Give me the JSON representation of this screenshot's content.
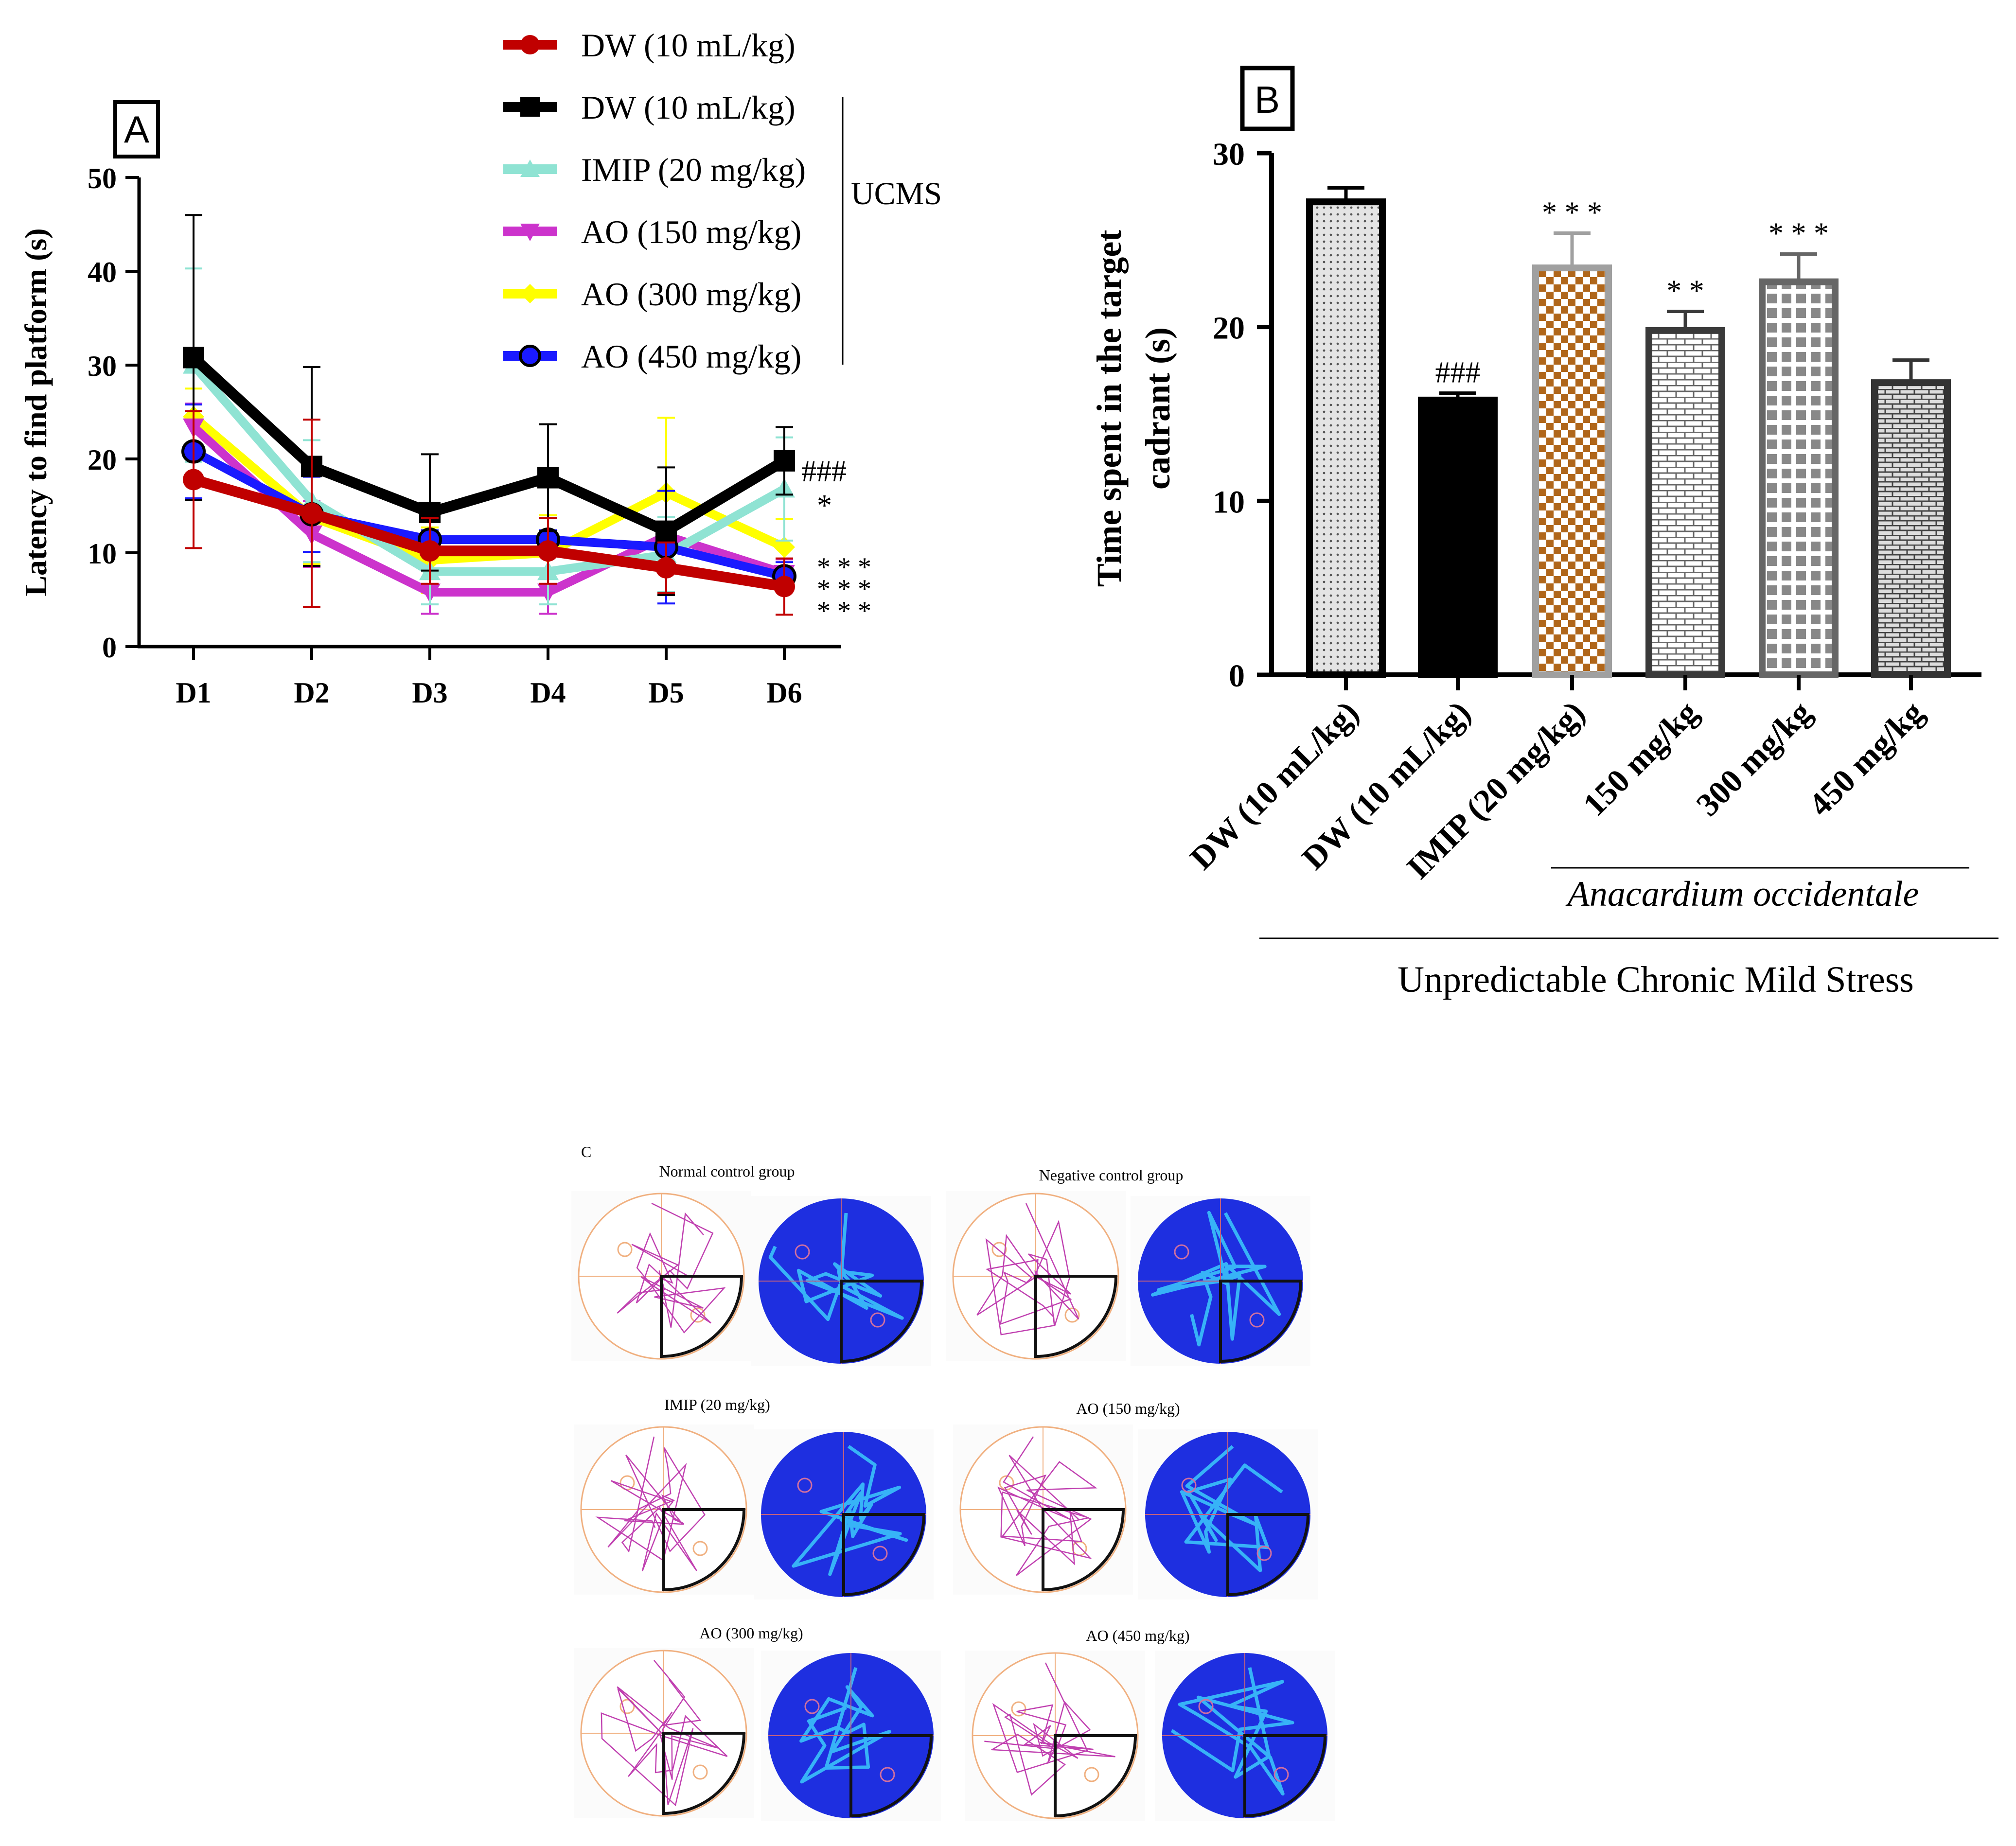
{
  "chart_data": [
    {
      "panel": "A",
      "type": "line",
      "ylabel": "Latency to find platform (s)",
      "xlabel": "",
      "categories": [
        "D1",
        "D2",
        "D3",
        "D4",
        "D5",
        "D6"
      ],
      "yticks": [
        "0",
        "10",
        "20",
        "30",
        "40",
        "50"
      ],
      "ylim": [
        0,
        50
      ],
      "series": [
        {
          "name": "DW (10 mL/kg)",
          "color": "#c00000",
          "marker": "circle",
          "values": [
            17.8,
            14.2,
            10.2,
            10.2,
            8.4,
            6.4
          ],
          "errors": [
            7.3,
            10.0,
            3.5,
            3.5,
            2.7,
            3.0
          ]
        },
        {
          "name": "DW (10 mL/kg)",
          "color": "#000000",
          "marker": "square",
          "values": [
            30.8,
            19.2,
            14.3,
            18.0,
            12.3,
            19.8
          ],
          "errors": [
            15.2,
            10.6,
            6.2,
            5.7,
            6.8,
            3.6
          ]
        },
        {
          "name": "IMIP (20 mg/kg)",
          "color": "#8fe3d3",
          "marker": "triangle",
          "values": [
            30.0,
            15.5,
            8.0,
            8.0,
            9.8,
            16.8
          ],
          "errors": [
            10.3,
            6.5,
            3.5,
            3.5,
            4.0,
            5.5
          ]
        },
        {
          "name": "AO (150 mg/kg)",
          "color": "#cc33cc",
          "marker": "triangle-down",
          "values": [
            23.4,
            12.0,
            5.8,
            5.8,
            11.8,
            7.8
          ],
          "errors": [
            2.5,
            3.5,
            2.3,
            2.3,
            1.5,
            1.5
          ]
        },
        {
          "name": "AO (300 mg/kg)",
          "color": "#ffff00",
          "marker": "diamond",
          "values": [
            24.5,
            13.8,
            9.2,
            10.0,
            16.4,
            10.6
          ],
          "errors": [
            3.0,
            5.0,
            3.5,
            4.0,
            8.0,
            3.0
          ]
        },
        {
          "name": "AO (450 mg/kg)",
          "color": "#1a1aff",
          "marker": "circle-open",
          "values": [
            20.8,
            14.1,
            11.4,
            11.4,
            10.6,
            7.5
          ],
          "errors": [
            5.0,
            4.0,
            1.0,
            1.0,
            6.0,
            1.5
          ]
        }
      ],
      "legend_group_label": "UCMS",
      "significance": [
        "###",
        "*",
        "* * *",
        "* * *",
        "* * *"
      ]
    },
    {
      "panel": "B",
      "type": "bar",
      "ylabel": "Time spent in the target cadrant (s)",
      "categories": [
        "DW (10 mL/kg)",
        "DW (10 mL/kg)",
        "IMIP (20 mg/kg)",
        "150 mg/kg",
        "300 mg/kg",
        "450 mg/kg"
      ],
      "values": [
        27.2,
        15.8,
        23.4,
        19.8,
        22.6,
        16.8
      ],
      "errors": [
        0.8,
        0.4,
        2.0,
        1.1,
        1.6,
        1.3
      ],
      "significance": [
        "",
        "###",
        "* * *",
        "* *",
        "* * *",
        ""
      ],
      "yticks": [
        "0",
        "10",
        "20",
        "30"
      ],
      "ylim": [
        0,
        30
      ],
      "group_label_inner": "Anacardium occidentale",
      "group_label_outer": "Unpredictable Chronic Mild Stress"
    }
  ],
  "panel_labels": {
    "a": "A",
    "b": "B",
    "c": "C"
  },
  "panel_c": {
    "titles": [
      "Normal control group",
      "Negative control group",
      "IMIP (20 mg/kg)",
      "AO (150 mg/kg)",
      "AO (300 mg/kg)",
      "AO (450 mg/kg)"
    ]
  },
  "colors": {
    "heatmap_bg": "#1e2fe0",
    "heatmap_trail": "#40e0ff",
    "track_path": "#c040b0",
    "pool_edge": "#f0b080"
  }
}
